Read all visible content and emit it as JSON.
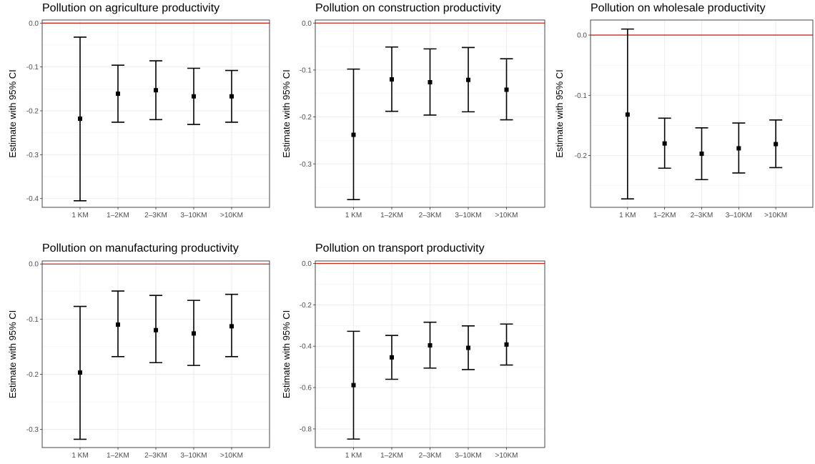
{
  "chart_data": [
    {
      "type": "errorbar",
      "title": "Pollution on agriculture productivity",
      "xlabel": "",
      "ylabel": "Estimate with 95% CI",
      "categories": [
        "1 KM",
        "1–2KM",
        "2–3KM",
        "3–10KM",
        ">10KM"
      ],
      "estimate": [
        -0.218,
        -0.161,
        -0.153,
        -0.167,
        -0.167
      ],
      "ci_low": [
        -0.405,
        -0.226,
        -0.22,
        -0.231,
        -0.226
      ],
      "ci_high": [
        -0.032,
        -0.096,
        -0.086,
        -0.103,
        -0.108
      ],
      "yticks": [
        0.0,
        -0.1,
        -0.2,
        -0.3,
        -0.4
      ],
      "ytick_labels": [
        "0.0",
        "-0.1",
        "-0.2",
        "-0.3",
        "-0.4"
      ],
      "ylim": [
        -0.42,
        0.007
      ],
      "reference_line": {
        "y": 0,
        "color": "#cc2a1e"
      },
      "grid": true
    },
    {
      "type": "errorbar",
      "title": "Pollution on construction productivity",
      "xlabel": "",
      "ylabel": "Estimate with 95% CI",
      "categories": [
        "1 KM",
        "1–2KM",
        "2–3KM",
        "3–10KM",
        ">10KM"
      ],
      "estimate": [
        -0.238,
        -0.12,
        -0.126,
        -0.121,
        -0.142
      ],
      "ci_low": [
        -0.376,
        -0.188,
        -0.196,
        -0.189,
        -0.206
      ],
      "ci_high": [
        -0.098,
        -0.051,
        -0.055,
        -0.052,
        -0.076
      ],
      "yticks": [
        0.0,
        -0.1,
        -0.2,
        -0.3
      ],
      "ytick_labels": [
        "0.0",
        "-0.1",
        "-0.2",
        "-0.3"
      ],
      "ylim": [
        -0.3925,
        0.0065
      ],
      "reference_line": {
        "y": 0,
        "color": "#cc2a1e"
      },
      "grid": true
    },
    {
      "type": "errorbar",
      "title": "Pollution on wholesale productivity",
      "xlabel": "",
      "ylabel": "Estimate with 95% CI",
      "categories": [
        "1 KM",
        "1–2KM",
        "2–3KM",
        "3–10KM",
        ">10KM"
      ],
      "estimate": [
        -0.132,
        -0.18,
        -0.197,
        -0.188,
        -0.181
      ],
      "ci_low": [
        -0.272,
        -0.221,
        -0.24,
        -0.229,
        -0.22
      ],
      "ci_high": [
        0.01,
        -0.138,
        -0.154,
        -0.146,
        -0.141
      ],
      "yticks": [
        0.0,
        -0.1,
        -0.2
      ],
      "ytick_labels": [
        "0.0",
        "-0.1",
        "-0.2"
      ],
      "ylim": [
        -0.286,
        0.025
      ],
      "reference_line": {
        "y": 0,
        "color": "#cc2a1e"
      },
      "grid": true
    },
    {
      "type": "errorbar",
      "title": "Pollution on manufacturing productivity",
      "xlabel": "",
      "ylabel": "Estimate with 95% CI",
      "categories": [
        "1 KM",
        "1–2KM",
        "2–3KM",
        "3–10KM",
        ">10KM"
      ],
      "estimate": [
        -0.197,
        -0.11,
        -0.12,
        -0.126,
        -0.113
      ],
      "ci_low": [
        -0.318,
        -0.168,
        -0.179,
        -0.184,
        -0.168
      ],
      "ci_high": [
        -0.077,
        -0.049,
        -0.057,
        -0.066,
        -0.055
      ],
      "yticks": [
        0.0,
        -0.1,
        -0.2,
        -0.3
      ],
      "ytick_labels": [
        "0.0",
        "-0.1",
        "-0.2",
        "-0.3"
      ],
      "ylim": [
        -0.333,
        0.0055
      ],
      "reference_line": {
        "y": 0,
        "color": "#cc2a1e"
      },
      "grid": true
    },
    {
      "type": "errorbar",
      "title": "Pollution on transport productivity",
      "xlabel": "",
      "ylabel": "Estimate with 95% CI",
      "categories": [
        "1 KM",
        "1–2KM",
        "2–3KM",
        "3–10KM",
        ">10KM"
      ],
      "estimate": [
        -0.588,
        -0.454,
        -0.396,
        -0.408,
        -0.392
      ],
      "ci_low": [
        -0.849,
        -0.56,
        -0.506,
        -0.513,
        -0.491
      ],
      "ci_high": [
        -0.328,
        -0.348,
        -0.284,
        -0.302,
        -0.293
      ],
      "yticks": [
        0.0,
        -0.2,
        -0.4,
        -0.6,
        -0.8
      ],
      "ytick_labels": [
        "0.0",
        "-0.2",
        "-0.4",
        "-0.6",
        "-0.8"
      ],
      "ylim": [
        -0.89,
        0.012
      ],
      "reference_line": {
        "y": 0,
        "color": "#cc2a1e"
      },
      "grid": true
    }
  ]
}
